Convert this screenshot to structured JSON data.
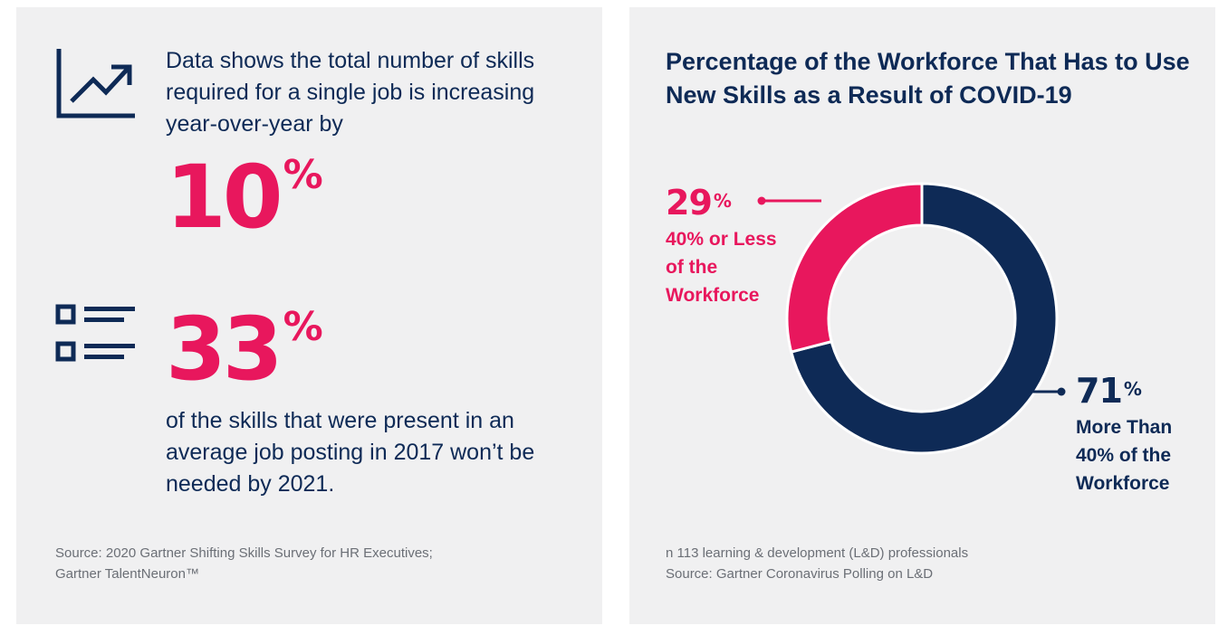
{
  "left": {
    "lead_text": "Data shows the total number of skills required for a single job is increasing year-over-year by",
    "stat1": {
      "value": "10",
      "suffix": "%"
    },
    "stat2": {
      "value": "33",
      "suffix": "%"
    },
    "follow_text": "of the skills that were present in an average job posting in 2017 won’t be needed by 2021.",
    "source_line1": "Source: 2020 Gartner Shifting Skills Survey for HR Executives;",
    "source_line2": "Gartner TalentNeuron™",
    "icons": [
      "trend-up-icon",
      "checklist-icon"
    ]
  },
  "right": {
    "title": "Percentage of the Workforce That Has to Use New Skills as a Result of COVID-19",
    "footnote_line1": "n 113 learning & development (L&D) professionals",
    "footnote_line2": "Source: Gartner Coronavirus Polling on L&D"
  },
  "colors": {
    "navy": "#0e2a56",
    "pink": "#e8175d",
    "panel": "#f0f0f1"
  },
  "chart_data": {
    "type": "pie",
    "variant": "donut",
    "title": "Percentage of the Workforce That Has to Use New Skills as a Result of COVID-19",
    "slices": [
      {
        "value": 71,
        "value_label": "71",
        "suffix": "%",
        "label": "More Than 40% of the Workforce",
        "color": "#0e2a56"
      },
      {
        "value": 29,
        "value_label": "29",
        "suffix": "%",
        "label": "40% or Less of the Workforce",
        "color": "#e8175d"
      }
    ]
  }
}
